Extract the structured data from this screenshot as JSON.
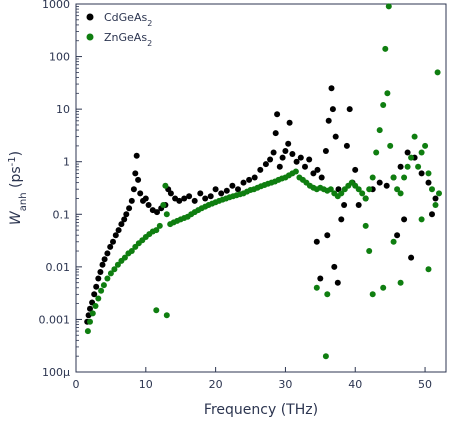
{
  "chart_data": {
    "type": "scatter",
    "xlabel": "Frequency (THz)",
    "ylabel": {
      "main": "W",
      "sub": "anh",
      "unit": " (ps",
      "sup": "-1",
      "close": ")"
    },
    "xlim": [
      0,
      53
    ],
    "ylim": [
      0.0001,
      1000
    ],
    "yscale": "log",
    "xticks": [
      0,
      10,
      20,
      30,
      40,
      50
    ],
    "yticks": [
      {
        "value": 0.0001,
        "label": "100µ"
      },
      {
        "value": 0.001,
        "label": "0.001"
      },
      {
        "value": 0.01,
        "label": "0.01"
      },
      {
        "value": 0.1,
        "label": "0.1"
      },
      {
        "value": 1,
        "label": "1"
      },
      {
        "value": 10,
        "label": "10"
      },
      {
        "value": 100,
        "label": "100"
      },
      {
        "value": 1000,
        "label": "1000"
      }
    ],
    "grid": false,
    "legend_position": "top-left",
    "series": [
      {
        "name": "CdGeAs",
        "name_sub": "2",
        "color": "#000000",
        "points": [
          [
            1.6,
            0.0009
          ],
          [
            1.8,
            0.0012
          ],
          [
            2.0,
            0.0016
          ],
          [
            2.3,
            0.0021
          ],
          [
            2.6,
            0.003
          ],
          [
            2.9,
            0.0042
          ],
          [
            3.2,
            0.006
          ],
          [
            3.5,
            0.008
          ],
          [
            3.8,
            0.011
          ],
          [
            4.1,
            0.014
          ],
          [
            4.5,
            0.018
          ],
          [
            4.9,
            0.024
          ],
          [
            5.3,
            0.03
          ],
          [
            5.7,
            0.04
          ],
          [
            6.1,
            0.05
          ],
          [
            6.5,
            0.065
          ],
          [
            6.9,
            0.08
          ],
          [
            7.2,
            0.1
          ],
          [
            7.6,
            0.13
          ],
          [
            8.0,
            0.18
          ],
          [
            8.3,
            0.3
          ],
          [
            8.5,
            0.6
          ],
          [
            8.7,
            1.3
          ],
          [
            8.9,
            0.45
          ],
          [
            9.2,
            0.25
          ],
          [
            9.6,
            0.18
          ],
          [
            10.0,
            0.2
          ],
          [
            10.4,
            0.15
          ],
          [
            11.0,
            0.12
          ],
          [
            11.6,
            0.11
          ],
          [
            12.2,
            0.13
          ],
          [
            12.8,
            0.15
          ],
          [
            13.2,
            0.3
          ],
          [
            13.6,
            0.25
          ],
          [
            14.2,
            0.2
          ],
          [
            14.8,
            0.18
          ],
          [
            15.5,
            0.2
          ],
          [
            16.2,
            0.22
          ],
          [
            17.0,
            0.18
          ],
          [
            17.8,
            0.25
          ],
          [
            18.5,
            0.2
          ],
          [
            19.3,
            0.22
          ],
          [
            20.0,
            0.3
          ],
          [
            20.8,
            0.25
          ],
          [
            21.6,
            0.28
          ],
          [
            22.4,
            0.35
          ],
          [
            23.2,
            0.3
          ],
          [
            24.0,
            0.4
          ],
          [
            24.8,
            0.45
          ],
          [
            25.6,
            0.5
          ],
          [
            26.4,
            0.7
          ],
          [
            27.2,
            0.9
          ],
          [
            27.8,
            1.1
          ],
          [
            28.3,
            1.5
          ],
          [
            28.6,
            3.5
          ],
          [
            28.8,
            8
          ],
          [
            29.2,
            0.8
          ],
          [
            29.6,
            1.2
          ],
          [
            30.0,
            1.6
          ],
          [
            30.4,
            2.2
          ],
          [
            30.6,
            5.5
          ],
          [
            31.0,
            1.4
          ],
          [
            31.6,
            1.0
          ],
          [
            32.2,
            1.2
          ],
          [
            32.8,
            0.8
          ],
          [
            33.4,
            1.1
          ],
          [
            34.0,
            0.6
          ],
          [
            34.6,
            0.7
          ],
          [
            35.2,
            0.5
          ],
          [
            35.8,
            1.6
          ],
          [
            36.2,
            6
          ],
          [
            36.6,
            25
          ],
          [
            36.8,
            10
          ],
          [
            37.2,
            3
          ],
          [
            37.6,
            0.3
          ],
          [
            38.0,
            0.08
          ],
          [
            38.4,
            0.15
          ],
          [
            38.8,
            2
          ],
          [
            39.2,
            10
          ],
          [
            39.6,
            0.4
          ],
          [
            40.0,
            0.7
          ],
          [
            35.0,
            0.006
          ],
          [
            36.0,
            0.04
          ],
          [
            37.0,
            0.01
          ],
          [
            34.5,
            0.03
          ],
          [
            40.5,
            0.15
          ],
          [
            41.5,
            0.2
          ],
          [
            42.5,
            0.3
          ],
          [
            43.5,
            0.4
          ],
          [
            44.5,
            0.35
          ],
          [
            45.5,
            0.5
          ],
          [
            46.5,
            0.8
          ],
          [
            47.5,
            1.5
          ],
          [
            48.5,
            1.2
          ],
          [
            49.5,
            0.6
          ],
          [
            50.5,
            0.4
          ],
          [
            51.5,
            0.2
          ],
          [
            46.0,
            0.04
          ],
          [
            47.0,
            0.08
          ],
          [
            48.0,
            0.015
          ],
          [
            51.0,
            0.1
          ],
          [
            37.5,
            0.005
          ]
        ]
      },
      {
        "name": "ZnGeAs",
        "name_sub": "2",
        "color": "#0f7e10",
        "points": [
          [
            1.7,
            0.0006
          ],
          [
            2.0,
            0.0009
          ],
          [
            2.4,
            0.0013
          ],
          [
            2.8,
            0.0018
          ],
          [
            3.2,
            0.0025
          ],
          [
            3.6,
            0.0035
          ],
          [
            4.0,
            0.0045
          ],
          [
            4.5,
            0.006
          ],
          [
            5.0,
            0.0075
          ],
          [
            5.5,
            0.009
          ],
          [
            6.0,
            0.011
          ],
          [
            6.5,
            0.013
          ],
          [
            7.0,
            0.015
          ],
          [
            7.5,
            0.018
          ],
          [
            8.0,
            0.02
          ],
          [
            8.5,
            0.024
          ],
          [
            9.0,
            0.028
          ],
          [
            9.5,
            0.032
          ],
          [
            10.0,
            0.037
          ],
          [
            10.5,
            0.042
          ],
          [
            11.0,
            0.047
          ],
          [
            11.5,
            0.05
          ],
          [
            12.0,
            0.06
          ],
          [
            12.5,
            0.15
          ],
          [
            12.8,
            0.35
          ],
          [
            13.0,
            0.1
          ],
          [
            13.5,
            0.065
          ],
          [
            14.0,
            0.07
          ],
          [
            14.5,
            0.075
          ],
          [
            15.0,
            0.08
          ],
          [
            15.5,
            0.085
          ],
          [
            16.0,
            0.09
          ],
          [
            16.5,
            0.1
          ],
          [
            17.0,
            0.11
          ],
          [
            17.5,
            0.12
          ],
          [
            18.0,
            0.13
          ],
          [
            18.5,
            0.14
          ],
          [
            19.0,
            0.15
          ],
          [
            19.5,
            0.16
          ],
          [
            20.0,
            0.17
          ],
          [
            20.5,
            0.18
          ],
          [
            21.0,
            0.19
          ],
          [
            21.5,
            0.2
          ],
          [
            22.0,
            0.21
          ],
          [
            22.5,
            0.22
          ],
          [
            23.0,
            0.23
          ],
          [
            23.5,
            0.24
          ],
          [
            24.0,
            0.25
          ],
          [
            24.5,
            0.27
          ],
          [
            25.0,
            0.29
          ],
          [
            25.5,
            0.3
          ],
          [
            26.0,
            0.32
          ],
          [
            26.5,
            0.34
          ],
          [
            27.0,
            0.36
          ],
          [
            27.5,
            0.38
          ],
          [
            28.0,
            0.4
          ],
          [
            28.5,
            0.42
          ],
          [
            29.0,
            0.45
          ],
          [
            29.5,
            0.48
          ],
          [
            30.0,
            0.5
          ],
          [
            30.5,
            0.55
          ],
          [
            31.0,
            0.6
          ],
          [
            31.5,
            0.65
          ],
          [
            32.0,
            0.5
          ],
          [
            32.5,
            0.45
          ],
          [
            33.0,
            0.4
          ],
          [
            33.5,
            0.35
          ],
          [
            34.0,
            0.32
          ],
          [
            34.5,
            0.3
          ],
          [
            35.0,
            0.32
          ],
          [
            35.5,
            0.3
          ],
          [
            36.0,
            0.28
          ],
          [
            36.5,
            0.3
          ],
          [
            37.0,
            0.25
          ],
          [
            37.5,
            0.22
          ],
          [
            38.0,
            0.25
          ],
          [
            38.5,
            0.3
          ],
          [
            39.0,
            0.35
          ],
          [
            39.5,
            0.4
          ],
          [
            40.0,
            0.35
          ],
          [
            40.5,
            0.3
          ],
          [
            41.0,
            0.25
          ],
          [
            41.5,
            0.2
          ],
          [
            42.0,
            0.3
          ],
          [
            42.5,
            0.5
          ],
          [
            43.0,
            1.5
          ],
          [
            43.5,
            4
          ],
          [
            44.0,
            12
          ],
          [
            44.3,
            140
          ],
          [
            44.6,
            20
          ],
          [
            45.0,
            2
          ],
          [
            45.5,
            0.5
          ],
          [
            46.0,
            0.3
          ],
          [
            46.5,
            0.25
          ],
          [
            47.0,
            0.5
          ],
          [
            47.5,
            0.8
          ],
          [
            48.0,
            1.2
          ],
          [
            48.5,
            3
          ],
          [
            49.0,
            0.8
          ],
          [
            49.5,
            1.5
          ],
          [
            50.0,
            2
          ],
          [
            50.5,
            0.6
          ],
          [
            51.0,
            0.3
          ],
          [
            51.5,
            0.15
          ],
          [
            52.0,
            0.25
          ],
          [
            35.8,
            0.0002
          ],
          [
            36.0,
            0.003
          ],
          [
            34.5,
            0.004
          ],
          [
            11.5,
            0.0015
          ],
          [
            13.0,
            0.0012
          ],
          [
            42.5,
            0.003
          ],
          [
            44.0,
            0.004
          ],
          [
            46.5,
            0.005
          ],
          [
            50.5,
            0.009
          ],
          [
            42.0,
            0.02
          ],
          [
            45.5,
            0.03
          ],
          [
            49.5,
            0.08
          ],
          [
            44.8,
            900
          ],
          [
            41.5,
            0.06
          ],
          [
            51.8,
            50
          ]
        ]
      }
    ]
  }
}
